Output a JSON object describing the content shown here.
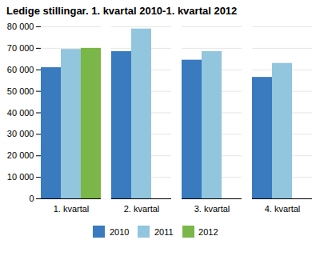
{
  "chart_data": {
    "type": "bar",
    "title": "Ledige stillingar. 1. kvartal 2010-1. kvartal 2012",
    "categories": [
      "1. kvartal",
      "2. kvartal",
      "3. kvartal",
      "4. kvartal"
    ],
    "series": [
      {
        "name": "2010",
        "color": "#3a7abf",
        "values": [
          61000,
          68500,
          64500,
          56500
        ]
      },
      {
        "name": "2011",
        "color": "#92c5de",
        "values": [
          69500,
          79000,
          68500,
          63000
        ]
      },
      {
        "name": "2012",
        "color": "#7ab648",
        "values": [
          70000,
          null,
          null,
          null
        ]
      }
    ],
    "ylim": [
      0,
      80000
    ],
    "yticks": [
      0,
      {
        "value": 10000,
        "label": "10 000"
      },
      {
        "value": 20000,
        "label": "20 000"
      },
      {
        "value": 30000,
        "label": "30 000"
      },
      {
        "value": 40000,
        "label": "40 000"
      },
      {
        "value": 50000,
        "label": "50 000"
      },
      {
        "value": 60000,
        "label": "60 000"
      },
      {
        "value": 70000,
        "label": "70 000"
      },
      {
        "value": 80000,
        "label": "80 000"
      }
    ],
    "grid": true,
    "legend": "bottom"
  }
}
